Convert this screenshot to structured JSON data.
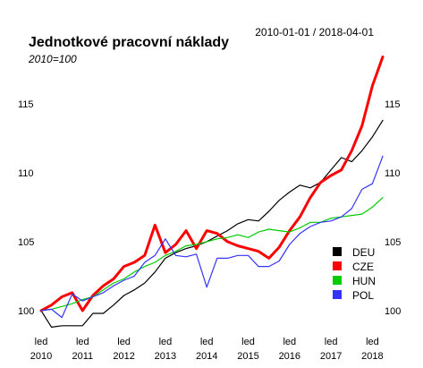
{
  "chart_data": {
    "type": "line",
    "title": "Jednotkové pracovní náklady",
    "subtitle": "2010=100",
    "date_range": "2010-01-01 / 2018-04-01",
    "xlabel": "",
    "ylabel": "",
    "xlim": [
      2010.0,
      2018.25
    ],
    "ylim": [
      98.5,
      118.5
    ],
    "y_ticks": [
      100,
      105,
      110,
      115
    ],
    "x_ticks": [
      {
        "x": 2010,
        "top": "led",
        "bottom": "2010"
      },
      {
        "x": 2011,
        "top": "led",
        "bottom": "2011"
      },
      {
        "x": 2012,
        "top": "led",
        "bottom": "2012"
      },
      {
        "x": 2013,
        "top": "led",
        "bottom": "2013"
      },
      {
        "x": 2014,
        "top": "led",
        "bottom": "2014"
      },
      {
        "x": 2015,
        "top": "led",
        "bottom": "2015"
      },
      {
        "x": 2016,
        "top": "led",
        "bottom": "2016"
      },
      {
        "x": 2017,
        "top": "led",
        "bottom": "2017"
      },
      {
        "x": 2018,
        "top": "led",
        "bottom": "2018"
      }
    ],
    "grid": false,
    "legend_position": "bottom-right",
    "x": [
      2010.0,
      2010.25,
      2010.5,
      2010.75,
      2011.0,
      2011.25,
      2011.5,
      2011.75,
      2012.0,
      2012.25,
      2012.5,
      2012.75,
      2013.0,
      2013.25,
      2013.5,
      2013.75,
      2014.0,
      2014.25,
      2014.5,
      2014.75,
      2015.0,
      2015.25,
      2015.5,
      2015.75,
      2016.0,
      2016.25,
      2016.5,
      2016.75,
      2017.0,
      2017.25,
      2017.5,
      2017.75,
      2018.0,
      2018.25
    ],
    "series": [
      {
        "name": "DEU",
        "color": "#000000",
        "width": 1.2,
        "values": [
          100.0,
          98.8,
          98.9,
          98.9,
          98.9,
          99.8,
          99.8,
          100.4,
          101.1,
          101.5,
          102.0,
          102.8,
          103.8,
          104.2,
          104.5,
          104.7,
          105.0,
          105.4,
          105.8,
          106.3,
          106.6,
          106.5,
          107.2,
          108.0,
          108.6,
          109.1,
          108.9,
          109.3,
          110.2,
          111.1,
          110.8,
          111.6,
          112.6,
          113.8
        ]
      },
      {
        "name": "CZE",
        "color": "#ff0000",
        "width": 3,
        "values": [
          100.0,
          100.4,
          101.0,
          101.3,
          100.0,
          101.1,
          101.8,
          102.3,
          103.2,
          103.5,
          104.0,
          106.2,
          104.2,
          104.8,
          105.8,
          104.5,
          105.8,
          105.6,
          105.0,
          104.7,
          104.5,
          104.3,
          103.8,
          104.6,
          105.8,
          106.8,
          108.2,
          109.3,
          109.8,
          110.2,
          111.6,
          113.4,
          116.3,
          118.4
        ]
      },
      {
        "name": "HUN",
        "color": "#00cc00",
        "width": 1.2,
        "values": [
          100.0,
          100.1,
          100.3,
          100.5,
          100.8,
          101.0,
          101.5,
          102.0,
          102.3,
          102.8,
          103.2,
          103.5,
          104.0,
          104.3,
          104.7,
          104.8,
          105.0,
          105.2,
          105.3,
          105.5,
          105.3,
          105.7,
          105.9,
          105.8,
          105.7,
          106.0,
          106.4,
          106.4,
          106.7,
          106.8,
          106.9,
          107.0,
          107.5,
          108.2
        ]
      },
      {
        "name": "POL",
        "color": "#3333ff",
        "width": 1.2,
        "values": [
          100.0,
          100.1,
          99.5,
          101.2,
          100.7,
          101.0,
          101.3,
          101.8,
          102.2,
          102.5,
          103.5,
          104.0,
          105.2,
          104.0,
          103.9,
          104.1,
          101.7,
          103.8,
          103.8,
          104.0,
          104.0,
          103.2,
          103.2,
          103.6,
          104.8,
          105.6,
          106.1,
          106.4,
          106.5,
          106.8,
          107.4,
          108.8,
          109.2,
          111.2
        ]
      }
    ]
  }
}
